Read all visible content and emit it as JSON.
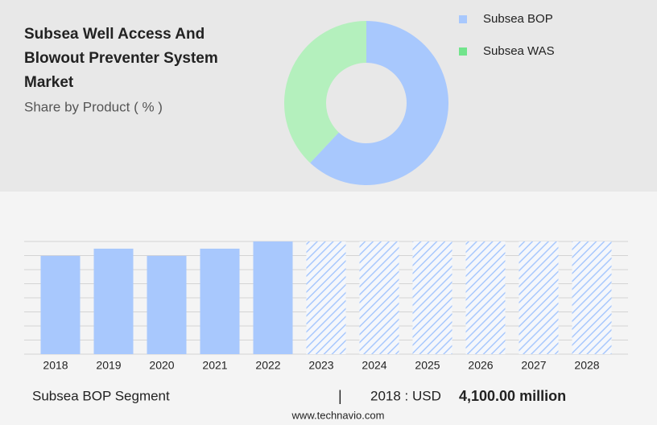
{
  "header": {
    "title_lines": [
      "Subsea Well Access And",
      "Blowout Preventer System",
      "Market"
    ],
    "subtitle": "Share by Product ( % )"
  },
  "chart_data": [
    {
      "type": "pie",
      "donut": true,
      "categories": [
        "Subsea BOP",
        "Subsea WAS"
      ],
      "values": [
        62,
        38
      ],
      "colors": [
        "#a8c8fd",
        "#b4f0bd"
      ],
      "legend_colors": [
        "#a8c8fd",
        "#72e48c"
      ]
    },
    {
      "type": "bar",
      "categories": [
        "2018",
        "2019",
        "2020",
        "2021",
        "2022",
        "2023",
        "2024",
        "2025",
        "2026",
        "2027",
        "2028"
      ],
      "values": [
        4100,
        4400,
        4100,
        4400,
        4700,
        null,
        null,
        null,
        null,
        null,
        null
      ],
      "color": "#a8c8fd",
      "ylim": [
        0,
        4700
      ],
      "grid": true
    }
  ],
  "footer": {
    "segment": "Subsea BOP Segment",
    "separator": "|",
    "year_label": "2018 : USD",
    "value_label": "4,100.00 million",
    "source": "www.technavio.com"
  }
}
